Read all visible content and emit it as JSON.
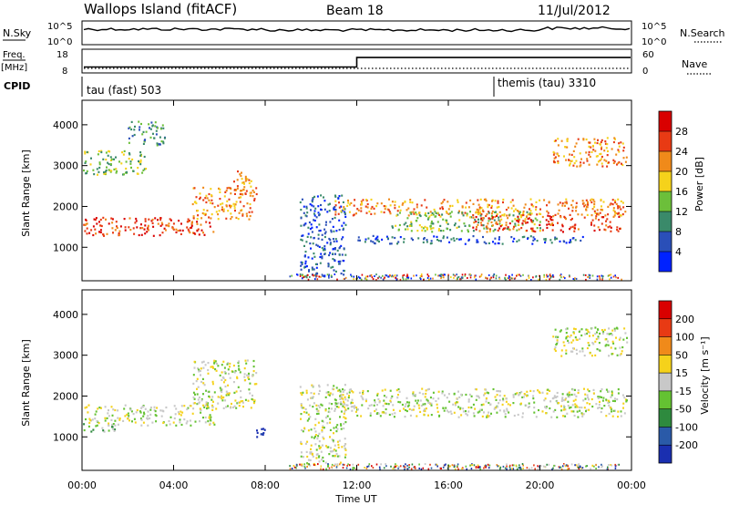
{
  "header": {
    "title": "Wallops Island (fitACF)",
    "beam": "Beam 18",
    "date": "11/Jul/2012"
  },
  "noise_panel": {
    "left_label": "N.Sky",
    "right_label": "N.Search",
    "left_ticks": [
      "10^5",
      "10^0"
    ],
    "right_ticks": [
      "10^5",
      "10^0"
    ]
  },
  "freq_panel": {
    "label_line1": "Freq.",
    "label_line2": "[MHz]",
    "left_ticks": [
      "18",
      "8"
    ],
    "right_label": "Nave",
    "right_ticks": [
      "60",
      "0"
    ]
  },
  "cpid_panel": {
    "label": "CPID",
    "segments": [
      {
        "name": "tau (fast) 503",
        "start_hour": 0
      },
      {
        "name": "themis (tau) 3310",
        "start_hour": 18
      }
    ]
  },
  "power_panel": {
    "ylabel": "Slant Range [km]",
    "yticks": [
      "4000",
      "3000",
      "2000",
      "1000"
    ],
    "colorbar_label": "Power [dB]",
    "colorbar_ticks": [
      "28",
      "24",
      "20",
      "16",
      "12",
      "8",
      "4"
    ],
    "colors": [
      "#0022ff",
      "#2a4fb8",
      "#3a8a6a",
      "#6cbf3a",
      "#f5d21b",
      "#f08a1a",
      "#e83a14",
      "#d90000"
    ]
  },
  "velocity_panel": {
    "ylabel": "Slant Range [km]",
    "yticks": [
      "4000",
      "3000",
      "2000",
      "1000"
    ],
    "colorbar_label": "Velocity [m s⁻¹]",
    "colorbar_ticks": [
      "200",
      "100",
      "50",
      "15",
      "-15",
      "-50",
      "-100",
      "-200"
    ],
    "colors": [
      "#1a2fb0",
      "#2a5aa8",
      "#2e8a3e",
      "#64c232",
      "#c8c8c8",
      "#f5d21b",
      "#f08a1a",
      "#e83a14",
      "#d90000"
    ]
  },
  "xaxis": {
    "ticks": [
      "00:00",
      "04:00",
      "08:00",
      "12:00",
      "16:00",
      "20:00",
      "00:00"
    ],
    "label": "Time UT"
  },
  "chart_data": {
    "type": "heatmap",
    "title": "Wallops Island (fitACF)",
    "xlabel": "Time UT",
    "ylabel": "Slant Range [km]",
    "xlim_hours": [
      0,
      24
    ],
    "ylim_km": [
      180,
      4600
    ],
    "frequency_mhz": [
      {
        "from_hour": 0,
        "to_hour": 12,
        "value": 10.5
      },
      {
        "from_hour": 12,
        "to_hour": 24,
        "value": 14.5
      }
    ],
    "power_bands": [
      {
        "t0": 0.0,
        "t1": 5.8,
        "r0": 1300,
        "r1": 1750,
        "level": 6
      },
      {
        "t0": 4.8,
        "t1": 7.6,
        "r0": 1700,
        "r1": 2500,
        "level": 5
      },
      {
        "t0": 6.6,
        "t1": 7.4,
        "r0": 2300,
        "r1": 2900,
        "level": 5
      },
      {
        "t0": 0.0,
        "t1": 2.8,
        "r0": 2800,
        "r1": 3400,
        "level": 3
      },
      {
        "t0": 2.0,
        "t1": 3.6,
        "r0": 3500,
        "r1": 4100,
        "level": 2
      },
      {
        "t0": 9.5,
        "t1": 11.5,
        "r0": 300,
        "r1": 2300,
        "level": 1
      },
      {
        "t0": 11.0,
        "t1": 23.8,
        "r0": 1800,
        "r1": 2200,
        "level": 5
      },
      {
        "t0": 13.5,
        "t1": 20.0,
        "r0": 1400,
        "r1": 1900,
        "level": 3
      },
      {
        "t0": 17.0,
        "t1": 23.5,
        "r0": 1400,
        "r1": 1800,
        "level": 6
      },
      {
        "t0": 20.5,
        "t1": 23.8,
        "r0": 3000,
        "r1": 3700,
        "level": 5
      },
      {
        "t0": 12.0,
        "t1": 22.0,
        "r0": 1100,
        "r1": 1300,
        "level": 1
      }
    ],
    "velocity_bands": [
      {
        "t0": 0.0,
        "t1": 5.8,
        "r0": 1300,
        "r1": 1800,
        "level": 4
      },
      {
        "t0": 0.0,
        "t1": 1.5,
        "r0": 1150,
        "r1": 1350,
        "level": 3
      },
      {
        "t0": 4.8,
        "t1": 7.6,
        "r0": 1700,
        "r1": 2900,
        "level": 4
      },
      {
        "t0": 7.6,
        "t1": 8.2,
        "r0": 1000,
        "r1": 1300,
        "level": 0
      },
      {
        "t0": 11.0,
        "t1": 23.8,
        "r0": 1500,
        "r1": 2200,
        "level": 4
      },
      {
        "t0": 9.5,
        "t1": 11.5,
        "r0": 300,
        "r1": 2300,
        "level": 4
      },
      {
        "t0": 20.5,
        "t1": 23.8,
        "r0": 3000,
        "r1": 3700,
        "level": 4
      }
    ]
  }
}
